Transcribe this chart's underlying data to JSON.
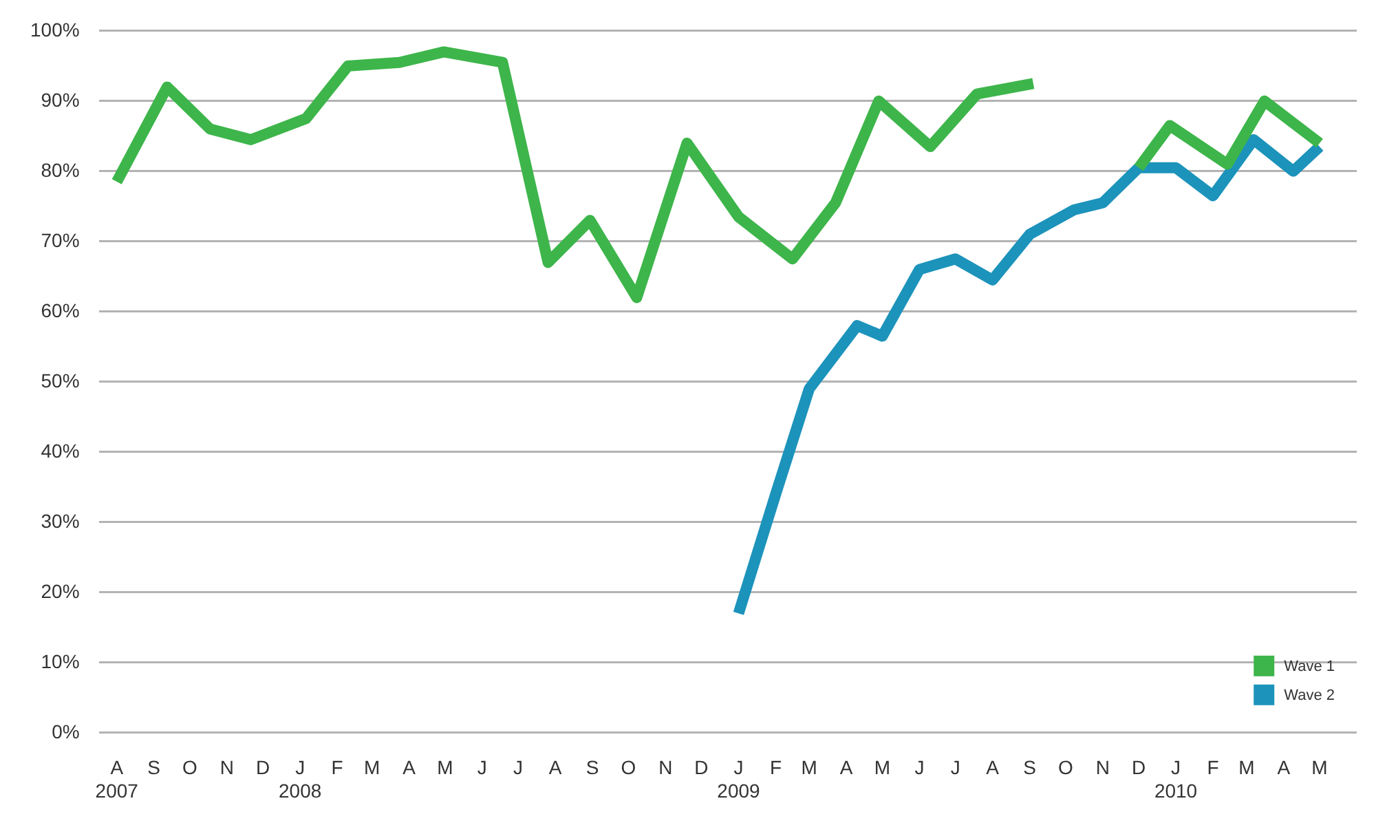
{
  "chart_data": {
    "type": "line",
    "xlim": [
      "2007-07-17",
      "2010-06-01"
    ],
    "xticks": [
      {
        "value": "2007-08",
        "label": "A\n2007"
      },
      {
        "value": "2007-09",
        "label": "S"
      },
      {
        "value": "2007-10",
        "label": "O"
      },
      {
        "value": "2007-11",
        "label": "N"
      },
      {
        "value": "2007-12",
        "label": "D"
      },
      {
        "value": "2008-01",
        "label": "J\n2008"
      },
      {
        "value": "2008-02",
        "label": "F"
      },
      {
        "value": "2008-03",
        "label": "M"
      },
      {
        "value": "2008-04",
        "label": "A"
      },
      {
        "value": "2008-05",
        "label": "M"
      },
      {
        "value": "2008-06",
        "label": "J"
      },
      {
        "value": "2008-07",
        "label": "J"
      },
      {
        "value": "2008-08",
        "label": "A"
      },
      {
        "value": "2008-09",
        "label": "S"
      },
      {
        "value": "2008-10",
        "label": "O"
      },
      {
        "value": "2008-11",
        "label": "N"
      },
      {
        "value": "2008-12",
        "label": "D"
      },
      {
        "value": "2009-01",
        "label": "J\n2009"
      },
      {
        "value": "2009-02",
        "label": "F"
      },
      {
        "value": "2009-03",
        "label": "M"
      },
      {
        "value": "2009-04",
        "label": "A"
      },
      {
        "value": "2009-05",
        "label": "M"
      },
      {
        "value": "2009-06",
        "label": "J"
      },
      {
        "value": "2009-07",
        "label": "J"
      },
      {
        "value": "2009-08",
        "label": "A"
      },
      {
        "value": "2009-09",
        "label": "S"
      },
      {
        "value": "2009-10",
        "label": "O"
      },
      {
        "value": "2009-11",
        "label": "N"
      },
      {
        "value": "2009-12",
        "label": "D"
      },
      {
        "value": "2010-01",
        "label": "J\n2010"
      },
      {
        "value": "2010-02",
        "label": "F"
      },
      {
        "value": "2010-03",
        "label": "M"
      },
      {
        "value": "2010-04",
        "label": "A"
      },
      {
        "value": "2010-05",
        "label": "M"
      }
    ],
    "ylim": [
      0,
      100
    ],
    "yticks": [
      {
        "value": 0,
        "label": "0%"
      },
      {
        "value": 10,
        "label": "10%"
      },
      {
        "value": 20,
        "label": "20%"
      },
      {
        "value": 30,
        "label": "30%"
      },
      {
        "value": 40,
        "label": "40%"
      },
      {
        "value": 50,
        "label": "50%"
      },
      {
        "value": 60,
        "label": "60%"
      },
      {
        "value": 70,
        "label": "70%"
      },
      {
        "value": 80,
        "label": "80%"
      },
      {
        "value": 90,
        "label": "90%"
      },
      {
        "value": 100,
        "label": "100%"
      }
    ],
    "grid": "y",
    "legend": "bottom right",
    "marker": "none",
    "line_style": "solid",
    "series": [
      {
        "name": "Wave 1",
        "color": "#3db54a",
        "x": [
          "2007-08",
          "2007-09-12",
          "2007-10-18",
          "2007-11-21",
          "2008-01-06",
          "2008-02-10",
          "2008-03-24",
          "2008-04-30",
          "2008-06-18",
          "2008-07-26",
          "2008-08-30",
          "2008-10-08",
          "2008-11-19",
          "2009-01",
          "2009-02-15",
          "2009-03-23",
          "2009-04-28",
          "2009-06-10",
          "2009-07-19",
          "2009-09-04",
          "2009-10-20",
          "2009-12",
          "2009-12-27",
          "2010-02-13",
          "2010-03-16",
          "2010-05"
        ],
        "values": [
          78.5,
          92,
          86,
          84.5,
          87.5,
          95,
          95.5,
          97,
          95.5,
          67,
          73,
          62,
          84,
          73.5,
          67.5,
          75.5,
          90,
          83.5,
          91,
          92.5,
          null,
          80.5,
          86.5,
          81,
          90,
          84
        ]
      },
      {
        "name": "Wave 2",
        "color": "#1c93bb",
        "x": [
          "2009-01",
          "2009-02",
          "2009-03",
          "2009-04-10",
          "2009-05",
          "2009-06",
          "2009-07",
          "2009-08",
          "2009-09",
          "2009-10-08",
          "2009-11",
          "2009-12",
          "2010-01",
          "2010-02",
          "2010-03-07",
          "2010-04-09",
          "2010-05"
        ],
        "values": [
          17,
          34,
          49,
          58,
          56.5,
          66,
          67.5,
          64.5,
          71,
          74.5,
          75.5,
          80.5,
          80.5,
          76.5,
          84.5,
          80,
          83.5
        ]
      }
    ]
  }
}
